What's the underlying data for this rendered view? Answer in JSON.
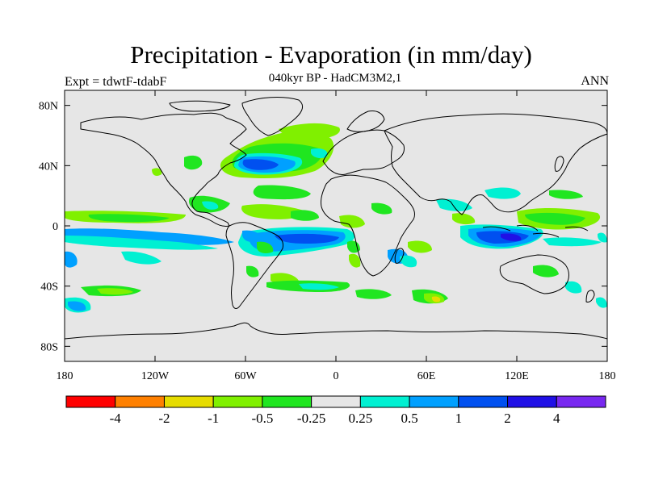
{
  "header": {
    "title": "Precipitation - Evaporation (in mm/day)",
    "subtitle": "040kyr BP - HadCM3M2,1",
    "left_string": "Expt = tdwtF-tdabF",
    "right_string": "ANN"
  },
  "map": {
    "projection": "cylindrical-equidistant",
    "lon_range": [
      -180,
      180
    ],
    "lat_range": [
      -90,
      90
    ],
    "background_color": "#e6e6e6",
    "x_ticks": [
      "180",
      "120W",
      "60W",
      "0",
      "60E",
      "120E",
      "180"
    ],
    "y_ticks": [
      "80N",
      "40N",
      "0",
      "40S",
      "80S"
    ]
  },
  "colorbar": {
    "colors": [
      "#ff0000",
      "#ff8000",
      "#e6dc00",
      "#80f000",
      "#20e620",
      "#e6e6e6",
      "#00f0d2",
      "#00a0ff",
      "#0050f0",
      "#2010e6",
      "#7828f0"
    ],
    "labels": [
      "-4",
      "-2",
      "-1",
      "-0.5",
      "-0.25",
      "0.25",
      "0.5",
      "1",
      "2",
      "4"
    ]
  }
}
